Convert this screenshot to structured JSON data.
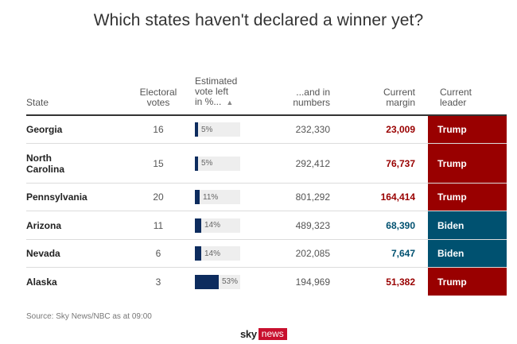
{
  "title": "Which states haven't declared a winner yet?",
  "chart_data": {
    "type": "table",
    "columns": [
      {
        "key": "state",
        "lines": [
          "State"
        ]
      },
      {
        "key": "electoral_votes",
        "lines": [
          "Electoral",
          "votes"
        ]
      },
      {
        "key": "vote_left_pct",
        "lines": [
          "Estimated",
          "vote left",
          "in %..."
        ]
      },
      {
        "key": "vote_left_numbers",
        "lines": [
          "...and in",
          "numbers"
        ]
      },
      {
        "key": "margin",
        "lines": [
          "Current",
          "margin"
        ]
      },
      {
        "key": "leader",
        "lines": [
          "Current",
          "leader"
        ]
      }
    ],
    "rows": [
      {
        "state": [
          "Georgia"
        ],
        "electoral_votes": "16",
        "vote_left_pct": 5,
        "vote_left_label": "5%",
        "vote_left_numbers": "232,330",
        "margin": "23,009",
        "leader": "Trump"
      },
      {
        "state": [
          "North",
          "Carolina"
        ],
        "electoral_votes": "15",
        "vote_left_pct": 5,
        "vote_left_label": "5%",
        "vote_left_numbers": "292,412",
        "margin": "76,737",
        "leader": "Trump"
      },
      {
        "state": [
          "Pennsylvania"
        ],
        "electoral_votes": "20",
        "vote_left_pct": 11,
        "vote_left_label": "11%",
        "vote_left_numbers": "801,292",
        "margin": "164,414",
        "leader": "Trump"
      },
      {
        "state": [
          "Arizona"
        ],
        "electoral_votes": "11",
        "vote_left_pct": 14,
        "vote_left_label": "14%",
        "vote_left_numbers": "489,323",
        "margin": "68,390",
        "leader": "Biden"
      },
      {
        "state": [
          "Nevada"
        ],
        "electoral_votes": "6",
        "vote_left_pct": 14,
        "vote_left_label": "14%",
        "vote_left_numbers": "202,085",
        "margin": "7,647",
        "leader": "Biden"
      },
      {
        "state": [
          "Alaska"
        ],
        "electoral_votes": "3",
        "vote_left_pct": 53,
        "vote_left_label": "53%",
        "vote_left_numbers": "194,969",
        "margin": "51,382",
        "leader": "Trump"
      }
    ],
    "colors": {
      "Trump": "#990000",
      "Biden": "#005170",
      "bar": "#0d2c5e",
      "bar_bg": "#eeeeee"
    },
    "sort_icon": "triangle-up-icon"
  },
  "source": "Source: Sky News/NBC as at 09:00",
  "logo": {
    "sky": "sky",
    "news": "news"
  }
}
